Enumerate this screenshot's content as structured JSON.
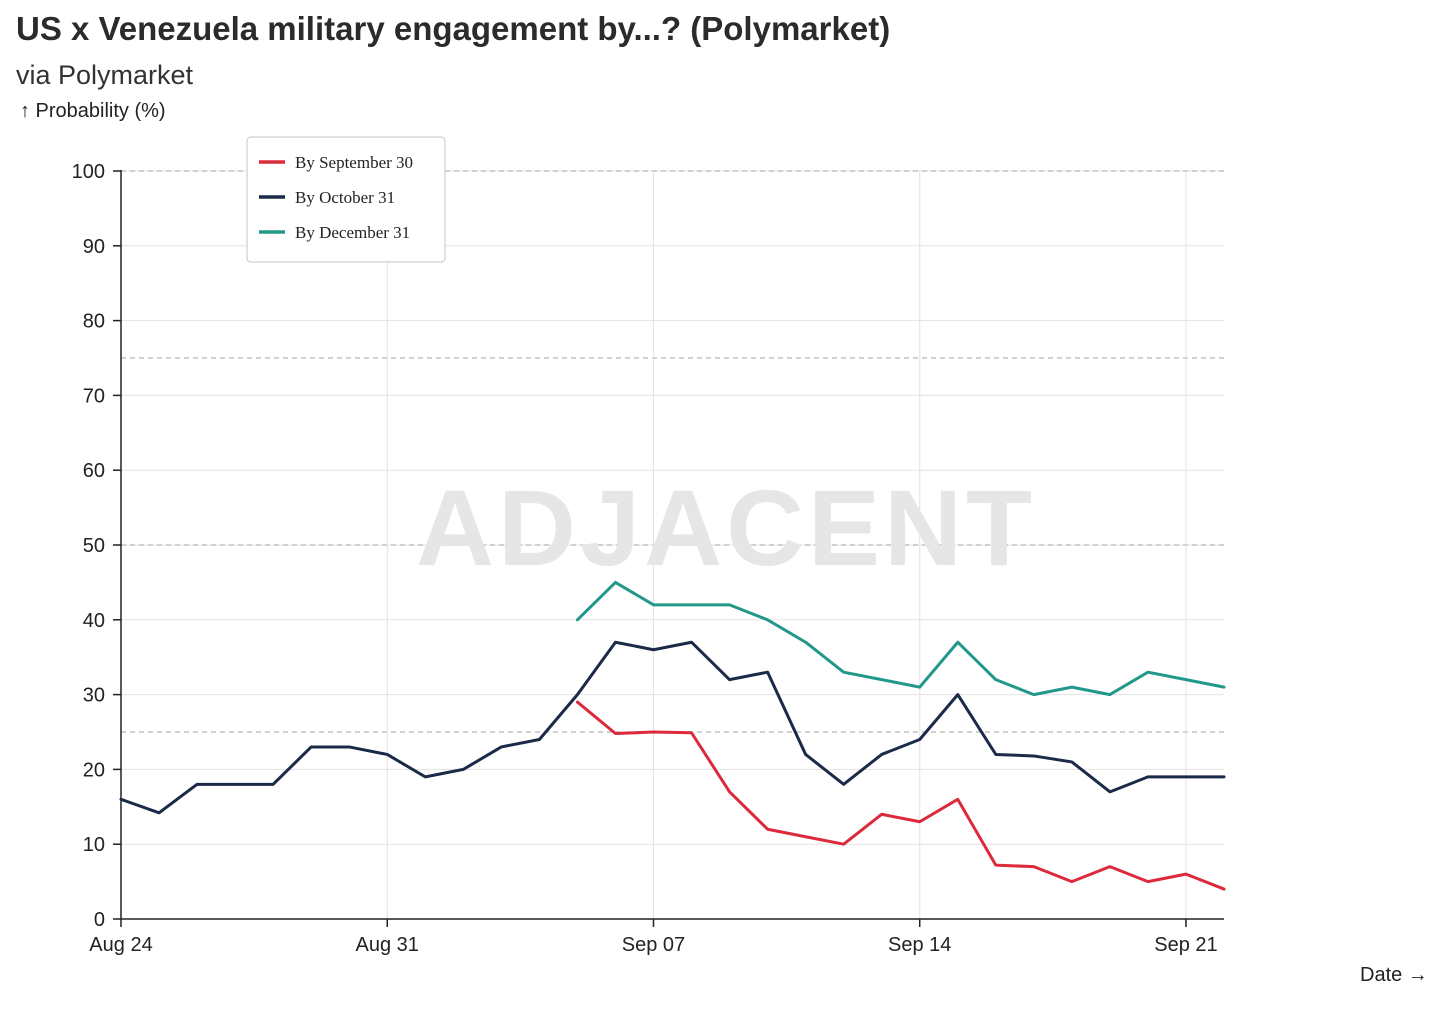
{
  "header": {
    "title": "US x Venezuela military engagement by...? (Polymarket)",
    "subtitle": "via Polymarket",
    "ylabel": "↑ Probability (%)",
    "xlabel": "Date →"
  },
  "watermark": "ADJACENT",
  "chart_data": {
    "type": "line",
    "title": "US x Venezuela military engagement by...? (Polymarket)",
    "subtitle": "via Polymarket",
    "ylabel": "↑ Probability (%)",
    "xlabel": "Date →",
    "x_domain": [
      "2025-08-24",
      "2025-09-22"
    ],
    "ylim": [
      0,
      100
    ],
    "y_ticks": [
      0,
      10,
      20,
      30,
      40,
      50,
      60,
      70,
      80,
      90,
      100
    ],
    "x_ticks": [
      {
        "date": "2025-08-24",
        "label": "Aug 24"
      },
      {
        "date": "2025-08-31",
        "label": "Aug 31"
      },
      {
        "date": "2025-09-07",
        "label": "Sep 07"
      },
      {
        "date": "2025-09-14",
        "label": "Sep 14"
      },
      {
        "date": "2025-09-21",
        "label": "Sep 21"
      }
    ],
    "reference_lines": [
      25,
      50,
      75,
      100
    ],
    "grid": true,
    "legend_position": "top-left",
    "series": [
      {
        "name": "By September 30",
        "color": "#dc2a3a",
        "points": [
          [
            "2025-09-05",
            29
          ],
          [
            "2025-09-06",
            24.8
          ],
          [
            "2025-09-07",
            25
          ],
          [
            "2025-09-08",
            24.9
          ],
          [
            "2025-09-09",
            17
          ],
          [
            "2025-09-10",
            12
          ],
          [
            "2025-09-11",
            11
          ],
          [
            "2025-09-12",
            10
          ],
          [
            "2025-09-13",
            14
          ],
          [
            "2025-09-14",
            13
          ],
          [
            "2025-09-15",
            16
          ],
          [
            "2025-09-16",
            7.2
          ],
          [
            "2025-09-17",
            7
          ],
          [
            "2025-09-18",
            5
          ],
          [
            "2025-09-19",
            7
          ],
          [
            "2025-09-20",
            5
          ],
          [
            "2025-09-21",
            6
          ],
          [
            "2025-09-22",
            4
          ]
        ]
      },
      {
        "name": "By October 31",
        "color": "#1b2a48",
        "points": [
          [
            "2025-08-24",
            16
          ],
          [
            "2025-08-25",
            14.2
          ],
          [
            "2025-08-26",
            18
          ],
          [
            "2025-08-27",
            18
          ],
          [
            "2025-08-28",
            18
          ],
          [
            "2025-08-29",
            23
          ],
          [
            "2025-08-30",
            23
          ],
          [
            "2025-08-31",
            22
          ],
          [
            "2025-09-01",
            19
          ],
          [
            "2025-09-02",
            20
          ],
          [
            "2025-09-03",
            23
          ],
          [
            "2025-09-04",
            24
          ],
          [
            "2025-09-05",
            30
          ],
          [
            "2025-09-06",
            37
          ],
          [
            "2025-09-07",
            36
          ],
          [
            "2025-09-08",
            37
          ],
          [
            "2025-09-09",
            32
          ],
          [
            "2025-09-10",
            33
          ],
          [
            "2025-09-11",
            22
          ],
          [
            "2025-09-12",
            18
          ],
          [
            "2025-09-13",
            22
          ],
          [
            "2025-09-14",
            24
          ],
          [
            "2025-09-15",
            30
          ],
          [
            "2025-09-16",
            22
          ],
          [
            "2025-09-17",
            21.8
          ],
          [
            "2025-09-18",
            21
          ],
          [
            "2025-09-19",
            17
          ],
          [
            "2025-09-20",
            19
          ],
          [
            "2025-09-21",
            19
          ],
          [
            "2025-09-22",
            19
          ]
        ]
      },
      {
        "name": "By December 31",
        "color": "#22988a",
        "points": [
          [
            "2025-09-05",
            40
          ],
          [
            "2025-09-06",
            45
          ],
          [
            "2025-09-07",
            42
          ],
          [
            "2025-09-08",
            42
          ],
          [
            "2025-09-09",
            42
          ],
          [
            "2025-09-10",
            40
          ],
          [
            "2025-09-11",
            37
          ],
          [
            "2025-09-12",
            33
          ],
          [
            "2025-09-13",
            32
          ],
          [
            "2025-09-14",
            31
          ],
          [
            "2025-09-15",
            37
          ],
          [
            "2025-09-16",
            32
          ],
          [
            "2025-09-17",
            30
          ],
          [
            "2025-09-18",
            31
          ],
          [
            "2025-09-19",
            30
          ],
          [
            "2025-09-20",
            33
          ],
          [
            "2025-09-21",
            32
          ],
          [
            "2025-09-22",
            31
          ]
        ]
      }
    ]
  }
}
